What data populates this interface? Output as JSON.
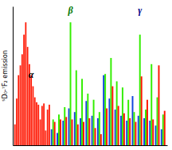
{
  "chart_data": {
    "type": "bar",
    "ylabel": "⁵D₀-⁷F₂ emission",
    "categories": [
      null,
      null,
      null,
      null,
      null,
      null,
      null,
      null,
      null,
      null,
      null,
      null,
      null,
      null,
      null,
      null,
      null,
      null,
      null,
      null,
      null,
      null,
      null,
      null,
      null,
      null,
      null,
      null,
      null,
      null,
      null,
      null,
      null,
      null,
      null,
      null,
      null,
      null,
      null,
      null
    ],
    "series": [
      {
        "color": "#1144dd",
        "values": [
          null,
          null,
          null,
          null,
          null,
          null,
          null,
          null,
          null,
          null,
          null,
          null,
          null,
          null,
          null,
          null,
          null,
          null,
          null,
          null,
          0.13,
          0.1,
          0.2,
          0.3,
          0.27,
          0.22,
          0.36,
          0.24,
          0.22,
          0.57,
          0.38,
          0.29,
          0.24,
          0.2,
          0.4,
          0.24,
          0.22,
          0.2,
          0.16,
          0.13
        ]
      },
      {
        "color": "#33ee00",
        "values": [
          null,
          null,
          null,
          null,
          null,
          null,
          null,
          null,
          null,
          null,
          null,
          null,
          null,
          null,
          null,
          null,
          null,
          null,
          null,
          null,
          0.21,
          0.25,
          0.31,
          1,
          0.61,
          0.54,
          0.42,
          0.37,
          0.27,
          0.58,
          0.71,
          0.52,
          0.47,
          0.37,
          0.27,
          0.9,
          0.29,
          0.66,
          0.39,
          0.25
        ]
      },
      {
        "color": "#ff1500",
        "values": [
          0.17,
          0.38,
          0.57,
          0.65,
          0.74,
          0.9,
          1,
          0.8,
          0.66,
          0.57,
          0.48,
          0.39,
          0.35,
          0.33,
          0.21,
          0.32,
          0.34,
          0.12,
          0.29,
          0.33,
          0.19,
          0.21,
          0.23,
          0.21,
          0.17,
          0.19,
          0.22,
          0.14,
          0.09,
          0.3,
          0.48,
          0.32,
          0.26,
          0.22,
          0.19,
          0.56,
          0.37,
          0.21,
          0.65,
          0.28
        ]
      }
    ],
    "ylim": [
      0,
      1.13
    ],
    "yticks": [],
    "tick_labels": false,
    "annotations": [
      {
        "text": "α",
        "x": 9,
        "y": 0.55,
        "color": "#000000"
      },
      {
        "text": "β",
        "x": 23,
        "y": 1.07,
        "color": "#007700"
      },
      {
        "text": "γ",
        "x": 35,
        "y": 1.07,
        "color": "#000088"
      }
    ]
  }
}
